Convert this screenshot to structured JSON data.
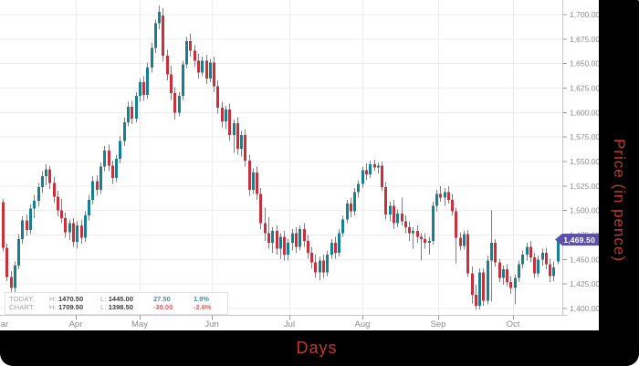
{
  "chart_data": {
    "type": "candlestick",
    "xlabel": "Days",
    "ylabel": "Price (in pence)",
    "ylim": [
      1390,
      1715
    ],
    "grid": true,
    "last_price": {
      "value": 1469.5,
      "label": "1,469.50"
    },
    "y_ticks": [
      {
        "value": 1700,
        "label": "1,700.00"
      },
      {
        "value": 1675,
        "label": "1,675.00"
      },
      {
        "value": 1650,
        "label": "1,650.00"
      },
      {
        "value": 1625,
        "label": "1,625.00"
      },
      {
        "value": 1600,
        "label": "1,600.00"
      },
      {
        "value": 1575,
        "label": "1,575.00"
      },
      {
        "value": 1550,
        "label": "1,550.00"
      },
      {
        "value": 1525,
        "label": "1,525.00"
      },
      {
        "value": 1500,
        "label": "1,500.00"
      },
      {
        "value": 1475,
        "label": "1,475.00"
      },
      {
        "value": 1450,
        "label": "1,450.00"
      },
      {
        "value": 1425,
        "label": "1,425.00"
      },
      {
        "value": 1400,
        "label": "1,400.00"
      }
    ],
    "x_ticks": [
      {
        "label": "Mar",
        "x": 1,
        "grid": false,
        "tick": false
      },
      {
        "label": "Apr",
        "x": 83,
        "grid": true,
        "tick": true
      },
      {
        "label": "May",
        "x": 153,
        "grid": true,
        "tick": true
      },
      {
        "label": "Jun",
        "x": 232,
        "grid": true,
        "tick": true
      },
      {
        "label": "Jul",
        "x": 317,
        "grid": true,
        "tick": true
      },
      {
        "label": "Aug",
        "x": 397,
        "grid": true,
        "tick": true
      },
      {
        "label": "Sep",
        "x": 480,
        "grid": true,
        "tick": true
      },
      {
        "label": "Oct",
        "x": 562,
        "grid": true,
        "tick": true
      }
    ],
    "candles": [
      [
        1508.5,
        1512,
        1458,
        1462
      ],
      [
        1462,
        1466,
        1428,
        1432
      ],
      [
        1432,
        1438,
        1403,
        1421
      ],
      [
        1421,
        1448,
        1412,
        1444
      ],
      [
        1444,
        1476,
        1440,
        1471
      ],
      [
        1471,
        1494,
        1466,
        1490
      ],
      [
        1490,
        1496,
        1474,
        1480
      ],
      [
        1480,
        1506,
        1476,
        1502
      ],
      [
        1502,
        1516,
        1492,
        1510
      ],
      [
        1510,
        1528,
        1504,
        1524
      ],
      [
        1524,
        1540,
        1518,
        1535
      ],
      [
        1535,
        1547,
        1526,
        1542
      ],
      [
        1542,
        1546,
        1522,
        1528
      ],
      [
        1528,
        1534,
        1508,
        1514
      ],
      [
        1514,
        1520,
        1494,
        1500
      ],
      [
        1500,
        1512,
        1487,
        1492
      ],
      [
        1492,
        1498,
        1472,
        1478
      ],
      [
        1478,
        1491,
        1470,
        1487
      ],
      [
        1487,
        1492,
        1463,
        1468
      ],
      [
        1468,
        1489,
        1461,
        1485
      ],
      [
        1485,
        1491,
        1466,
        1472
      ],
      [
        1472,
        1499,
        1468,
        1495
      ],
      [
        1495,
        1516,
        1490,
        1511
      ],
      [
        1511,
        1535,
        1506,
        1530
      ],
      [
        1530,
        1536,
        1515,
        1521
      ],
      [
        1521,
        1549,
        1517,
        1545
      ],
      [
        1545,
        1566,
        1540,
        1561
      ],
      [
        1561,
        1567,
        1540,
        1546
      ],
      [
        1546,
        1551,
        1527,
        1533
      ],
      [
        1533,
        1557,
        1529,
        1553
      ],
      [
        1553,
        1576,
        1548,
        1571
      ],
      [
        1571,
        1595,
        1566,
        1590
      ],
      [
        1590,
        1611,
        1586,
        1606
      ],
      [
        1606,
        1612,
        1588,
        1594
      ],
      [
        1594,
        1621,
        1590,
        1617
      ],
      [
        1617,
        1635,
        1611,
        1631
      ],
      [
        1631,
        1637,
        1612,
        1618
      ],
      [
        1618,
        1651,
        1614,
        1646
      ],
      [
        1646,
        1671,
        1641,
        1666
      ],
      [
        1666,
        1695,
        1661,
        1691
      ],
      [
        1691,
        1709.5,
        1685,
        1703
      ],
      [
        1699,
        1707,
        1652,
        1658
      ],
      [
        1658,
        1664,
        1633,
        1639
      ],
      [
        1639,
        1648,
        1613,
        1620
      ],
      [
        1620,
        1626,
        1593,
        1600
      ],
      [
        1600,
        1621,
        1596,
        1617
      ],
      [
        1617,
        1653,
        1613,
        1649
      ],
      [
        1649,
        1677,
        1645,
        1673
      ],
      [
        1673,
        1681,
        1657,
        1663
      ],
      [
        1663,
        1669,
        1647,
        1653
      ],
      [
        1653,
        1660,
        1635,
        1641
      ],
      [
        1641,
        1657,
        1637,
        1653
      ],
      [
        1653,
        1659,
        1629,
        1635
      ],
      [
        1635,
        1655,
        1631,
        1651
      ],
      [
        1651,
        1657,
        1621,
        1627
      ],
      [
        1627,
        1633,
        1599,
        1605
      ],
      [
        1605,
        1611,
        1585,
        1591
      ],
      [
        1591,
        1607,
        1583,
        1603
      ],
      [
        1603,
        1609,
        1571,
        1577
      ],
      [
        1577,
        1593,
        1559,
        1589
      ],
      [
        1589,
        1595,
        1557,
        1563
      ],
      [
        1563,
        1581,
        1555,
        1577
      ],
      [
        1577,
        1583,
        1545,
        1551
      ],
      [
        1551,
        1557,
        1515,
        1521
      ],
      [
        1521,
        1543,
        1517,
        1539
      ],
      [
        1539,
        1545,
        1511,
        1517
      ],
      [
        1517,
        1523,
        1481,
        1487
      ],
      [
        1487,
        1503,
        1469,
        1477
      ],
      [
        1477,
        1493,
        1461,
        1467
      ],
      [
        1467,
        1483,
        1457,
        1479
      ],
      [
        1479,
        1485,
        1455,
        1461
      ],
      [
        1461,
        1477,
        1451,
        1473
      ],
      [
        1473,
        1479,
        1449,
        1455
      ],
      [
        1455,
        1471,
        1449,
        1467
      ],
      [
        1467,
        1481,
        1459,
        1477
      ],
      [
        1477,
        1483,
        1457,
        1463
      ],
      [
        1463,
        1485,
        1459,
        1481
      ],
      [
        1481,
        1487,
        1463,
        1469
      ],
      [
        1469,
        1475,
        1451,
        1457
      ],
      [
        1457,
        1463,
        1441,
        1447
      ],
      [
        1447,
        1455,
        1431,
        1437
      ],
      [
        1437,
        1453,
        1429,
        1449
      ],
      [
        1449,
        1455,
        1431,
        1437
      ],
      [
        1437,
        1459,
        1433,
        1455
      ],
      [
        1455,
        1471,
        1451,
        1467
      ],
      [
        1467,
        1473,
        1451,
        1457
      ],
      [
        1457,
        1481,
        1453,
        1477
      ],
      [
        1477,
        1495,
        1473,
        1491
      ],
      [
        1491,
        1511,
        1487,
        1507
      ],
      [
        1507,
        1513,
        1493,
        1499
      ],
      [
        1499,
        1523,
        1495,
        1519
      ],
      [
        1519,
        1531,
        1513,
        1527
      ],
      [
        1527,
        1545,
        1523,
        1541
      ],
      [
        1541,
        1548,
        1531,
        1537
      ],
      [
        1537,
        1551,
        1533,
        1547
      ],
      [
        1547,
        1552,
        1540,
        1544
      ],
      [
        1544,
        1549,
        1538,
        1546
      ],
      [
        1546,
        1550,
        1520,
        1524
      ],
      [
        1524,
        1529,
        1491,
        1496
      ],
      [
        1496,
        1509,
        1489,
        1505
      ],
      [
        1505,
        1511,
        1481,
        1487
      ],
      [
        1487,
        1501,
        1483,
        1497
      ],
      [
        1497,
        1513,
        1485,
        1489
      ],
      [
        1489,
        1495,
        1477,
        1483
      ],
      [
        1483,
        1489,
        1469,
        1477
      ],
      [
        1477,
        1483,
        1461,
        1479
      ],
      [
        1479,
        1485,
        1467,
        1473
      ],
      [
        1473,
        1477,
        1449,
        1471
      ],
      [
        1471,
        1477,
        1461,
        1467
      ],
      [
        1467,
        1473,
        1455,
        1469
      ],
      [
        1469,
        1509,
        1465,
        1505
      ],
      [
        1505,
        1521,
        1499,
        1517
      ],
      [
        1517,
        1525,
        1509,
        1513
      ],
      [
        1513,
        1523,
        1505,
        1519
      ],
      [
        1519,
        1525,
        1507,
        1511
      ],
      [
        1511,
        1517,
        1495,
        1499
      ],
      [
        1499,
        1503,
        1446,
        1472
      ],
      [
        1472,
        1478,
        1459,
        1464
      ],
      [
        1464,
        1479,
        1460,
        1476
      ],
      [
        1476,
        1480,
        1432,
        1436
      ],
      [
        1436,
        1443,
        1405,
        1414
      ],
      [
        1414,
        1424,
        1398.5,
        1403
      ],
      [
        1403,
        1441,
        1399,
        1437
      ],
      [
        1437,
        1441,
        1403,
        1408
      ],
      [
        1408,
        1454,
        1404,
        1449
      ],
      [
        1449,
        1500,
        1407,
        1467
      ],
      [
        1467,
        1471,
        1443,
        1447
      ],
      [
        1447,
        1451,
        1427,
        1431
      ],
      [
        1431,
        1444,
        1424,
        1440
      ],
      [
        1440,
        1445,
        1423,
        1427
      ],
      [
        1427,
        1433,
        1415,
        1421
      ],
      [
        1421,
        1435,
        1404,
        1431
      ],
      [
        1431,
        1449,
        1427,
        1445
      ],
      [
        1445,
        1459,
        1441,
        1455
      ],
      [
        1455,
        1467,
        1449,
        1463
      ],
      [
        1463,
        1469,
        1447,
        1452
      ],
      [
        1452,
        1457,
        1431,
        1436
      ],
      [
        1436,
        1454,
        1432,
        1450
      ],
      [
        1450,
        1461,
        1444,
        1457
      ],
      [
        1457,
        1462,
        1440,
        1445
      ],
      [
        1445,
        1451,
        1427,
        1433
      ],
      [
        1433,
        1448,
        1428,
        1442
      ],
      [
        1448,
        1470.5,
        1445,
        1469.5
      ]
    ]
  },
  "legend": {
    "rows": [
      {
        "name": "TODAY:",
        "h_label": "H:",
        "high": "1470.50",
        "l_label": "L:",
        "low": "1445.00",
        "change": "27.50",
        "percent": "1.9%",
        "trend": "up"
      },
      {
        "name": "CHART:",
        "h_label": "H:",
        "high": "1709.50",
        "l_label": "L:",
        "low": "1398.50",
        "change": "-39.00",
        "percent": "-2.6%",
        "trend": "down"
      }
    ]
  },
  "colors": {
    "up": "#16808e",
    "down": "#c8303c",
    "wick": "#7f7f7f",
    "grid": "#ededed",
    "axis": "#c8c8c8",
    "tick": "#9a9a9a",
    "tick_text": "#8c8c8c",
    "badge_bg": "#5b51a8",
    "badge_text": "#ffffff",
    "axis_title": "#c13a2c",
    "legend_up": "#2b9fae",
    "legend_down": "#e25c5c"
  }
}
